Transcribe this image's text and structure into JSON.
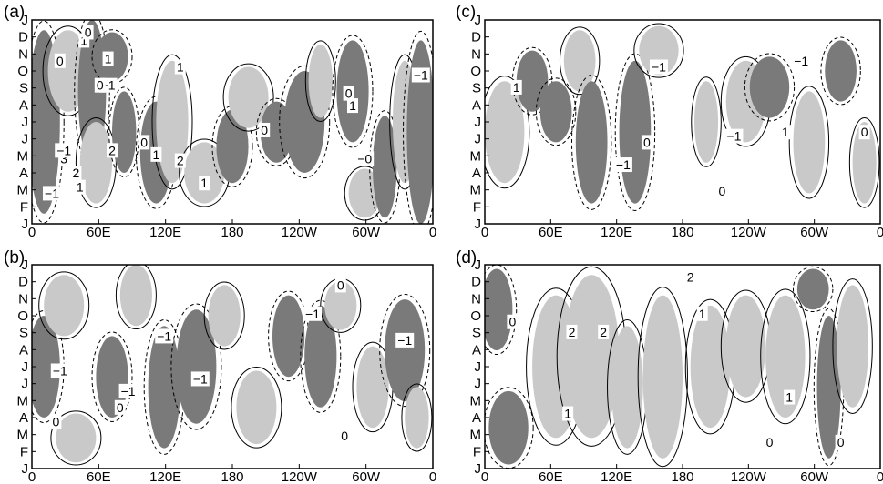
{
  "figure": {
    "months": [
      "J",
      "F",
      "M",
      "A",
      "M",
      "J",
      "J",
      "A",
      "S",
      "O",
      "N",
      "D",
      "J"
    ],
    "lon_ticks": [
      "0",
      "60E",
      "120E",
      "180",
      "120W",
      "60W",
      "0"
    ],
    "colors": {
      "dark": "#7a7a7a",
      "light": "#c9c9c9",
      "line": "#000000"
    }
  },
  "chart_data": [
    {
      "type": "heatmap",
      "panel": "(a)",
      "xlabel": "",
      "ylabel": "",
      "y_ticks": [
        "J",
        "F",
        "M",
        "A",
        "M",
        "J",
        "J",
        "A",
        "S",
        "O",
        "N",
        "D",
        "J"
      ],
      "x_ticks": [
        "0",
        "60E",
        "120E",
        "180",
        "120W",
        "60W",
        "0"
      ],
      "contour_labels": [
        "0",
        "1",
        "0",
        "-1",
        "0",
        "1",
        "2",
        "3",
        "-1",
        "2",
        "1",
        "0",
        "1",
        "2",
        "1",
        "1",
        "0",
        "1",
        "0",
        "-0",
        "-1",
        "-1"
      ],
      "grid": false
    },
    {
      "type": "heatmap",
      "panel": "(b)",
      "xlabel": "",
      "ylabel": "",
      "y_ticks": [
        "J",
        "F",
        "M",
        "A",
        "M",
        "J",
        "J",
        "A",
        "S",
        "O",
        "N",
        "D",
        "J"
      ],
      "x_ticks": [
        "0",
        "60E",
        "120E",
        "180",
        "120W",
        "60W",
        "0"
      ],
      "contour_labels": [
        "-1",
        "-1",
        "-1",
        "-1",
        "-1",
        "-1",
        "0",
        "0",
        "0",
        "0"
      ],
      "grid": false
    },
    {
      "type": "heatmap",
      "panel": "(c)",
      "xlabel": "",
      "ylabel": "",
      "y_ticks": [
        "J",
        "F",
        "M",
        "A",
        "M",
        "J",
        "J",
        "A",
        "S",
        "O",
        "N",
        "D",
        "J"
      ],
      "x_ticks": [
        "0",
        "60E",
        "120E",
        "180",
        "120W",
        "60W",
        "0"
      ],
      "contour_labels": [
        "1",
        "0",
        "-1",
        "-1",
        "-1",
        "-1",
        "1",
        "0",
        "0"
      ],
      "grid": false
    },
    {
      "type": "heatmap",
      "panel": "(d)",
      "xlabel": "",
      "ylabel": "",
      "y_ticks": [
        "J",
        "F",
        "M",
        "A",
        "M",
        "J",
        "J",
        "A",
        "S",
        "O",
        "N",
        "D",
        "J"
      ],
      "x_ticks": [
        "0",
        "60E",
        "120E",
        "180",
        "120W",
        "60W",
        "0"
      ],
      "contour_labels": [
        "2",
        "2",
        "2",
        "1",
        "1",
        "0",
        "1",
        "0",
        "0"
      ],
      "grid": false
    }
  ]
}
